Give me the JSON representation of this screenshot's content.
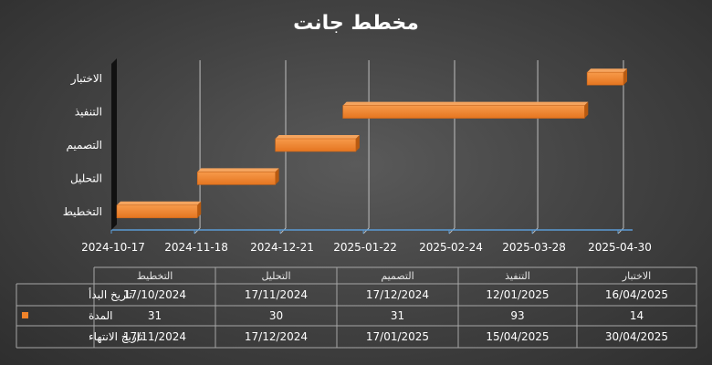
{
  "chart_data": {
    "type": "bar",
    "orientation": "horizontal-gantt",
    "title": "مخطط جانت",
    "categories": [
      "التخطيط",
      "التحليل",
      "التصميم",
      "التنفيذ",
      "الاختبار"
    ],
    "x_ticks": [
      "2024-10-17",
      "2024-11-18",
      "2024-12-21",
      "2025-01-22",
      "2025-02-24",
      "2025-03-28",
      "2025-04-30"
    ],
    "xlim": [
      "2024-10-17",
      "2025-04-30"
    ],
    "series": [
      {
        "name": "المدة",
        "color": "#f0832a",
        "start": [
          "2024-10-17",
          "2024-11-17",
          "2024-12-17",
          "2025-01-12",
          "2025-04-16"
        ],
        "values": [
          31,
          30,
          31,
          93,
          14
        ]
      }
    ],
    "grid": true,
    "legend": "table"
  },
  "table": {
    "columns": [
      "التخطيط",
      "التحليل",
      "التصميم",
      "التنفيذ",
      "الاختبار"
    ],
    "rows": [
      {
        "label": "تاريخ البدأ",
        "values": [
          "17/10/2024",
          "17/11/2024",
          "17/12/2024",
          "12/01/2025",
          "16/04/2025"
        ]
      },
      {
        "label": "المدة",
        "legend_color": "#f0832a",
        "values": [
          "31",
          "30",
          "31",
          "93",
          "14"
        ]
      },
      {
        "label": "تاريخ الانتهاء",
        "values": [
          "17/11/2024",
          "17/12/2024",
          "17/01/2025",
          "15/04/2025",
          "30/04/2025"
        ]
      }
    ]
  }
}
